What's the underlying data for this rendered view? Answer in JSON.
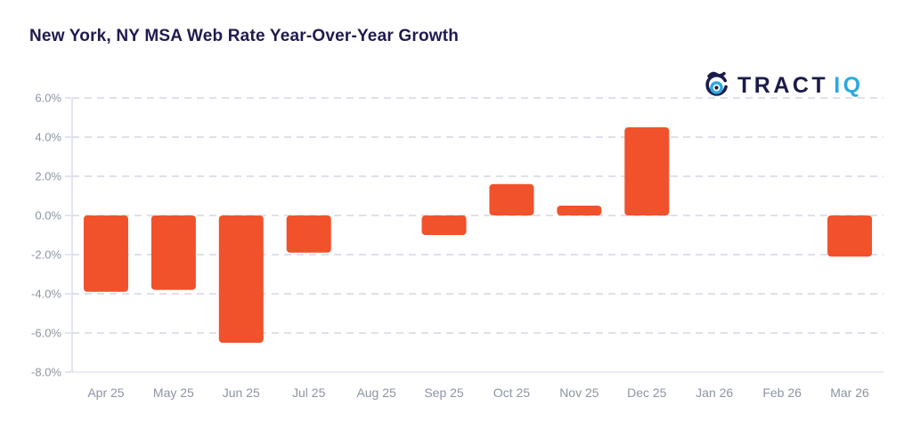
{
  "header": {
    "title": "New York, NY MSA Web Rate Year-Over-Year Growth"
  },
  "logo": {
    "icon": "tractiq-target-icon",
    "text_primary": "TRACT",
    "text_secondary": "IQ",
    "color_primary": "#1B1B4A",
    "color_secondary": "#2AA9E2"
  },
  "chart_data": {
    "type": "bar",
    "title": "New York, NY MSA Web Rate Year-Over-Year Growth",
    "categories": [
      "Apr 25",
      "May 25",
      "Jun 25",
      "Jul 25",
      "Aug 25",
      "Sep 25",
      "Oct 25",
      "Nov 25",
      "Dec 25",
      "Jan 26",
      "Feb 26",
      "Mar 26"
    ],
    "values": [
      -3.9,
      -3.8,
      -6.5,
      -1.9,
      0,
      -1.0,
      1.6,
      0.5,
      4.5,
      0,
      0,
      -2.1
    ],
    "months_with_no_bar": [
      "Aug 25",
      "Jan 26",
      "Feb 26"
    ],
    "xlabel": "",
    "ylabel": "",
    "ylim": [
      -8,
      6
    ],
    "yticks": [
      6,
      4,
      2,
      0,
      -2,
      -4,
      -6,
      -8
    ],
    "ytick_labels": [
      "6.0%",
      "4.0%",
      "2.0%",
      "0.0%",
      "-2.0%",
      "-4.0%",
      "-6.0%",
      "-8.0%"
    ],
    "grid": "horizontal dashed gridlines, solid baseline at -8%",
    "legend": "none",
    "bar_color": "#F1512B",
    "gridline_color": "#DEE0EC",
    "baseline_color": "#E3E5EE",
    "axis_line_color": "#D9DCE8",
    "tick_label_color": "#8C94A4"
  }
}
